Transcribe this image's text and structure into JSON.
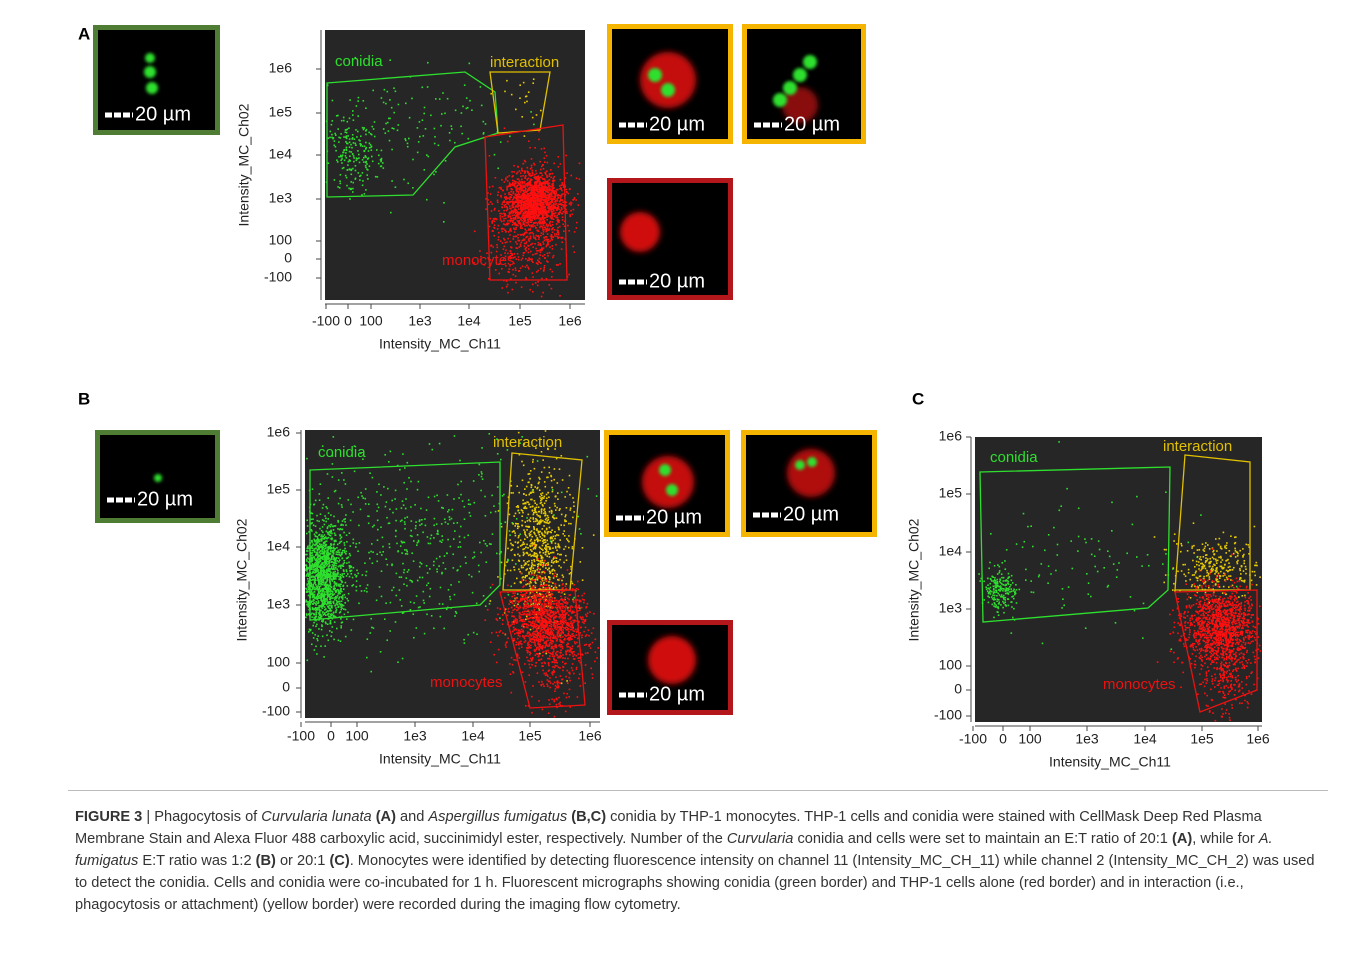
{
  "panels": [
    {
      "label": "A",
      "micrographs": [
        {
          "scale": "20 µm"
        },
        {
          "scale": "20 µm"
        },
        {
          "scale": "20 µm"
        },
        {
          "scale": "20 µm"
        }
      ],
      "plot": {
        "ylabel": "Intensity_MC_Ch02",
        "xlabel": "Intensity_MC_Ch11",
        "yticks": [
          "1e6",
          "1e5",
          "1e4",
          "1e3",
          "100",
          "0",
          "-100"
        ],
        "xticks": [
          "-100",
          "0",
          "100",
          "1e3",
          "1e4",
          "1e5",
          "1e6"
        ],
        "gates": [
          "conidia",
          "interaction",
          "monocytes"
        ]
      }
    },
    {
      "label": "B",
      "micrographs": [
        {
          "scale": "20 µm"
        },
        {
          "scale": "20 µm"
        },
        {
          "scale": "20 µm"
        },
        {
          "scale": "20 µm"
        }
      ],
      "plot": {
        "ylabel": "Intensity_MC_Ch02",
        "xlabel": "Intensity_MC_Ch11",
        "yticks": [
          "1e6",
          "1e5",
          "1e4",
          "1e3",
          "100",
          "0",
          "-100"
        ],
        "xticks": [
          "-100",
          "0",
          "100",
          "1e3",
          "1e4",
          "1e5",
          "1e6"
        ],
        "gates": [
          "conidia",
          "interaction",
          "monocytes"
        ]
      }
    },
    {
      "label": "C",
      "micrographs": [],
      "plot": {
        "ylabel": "Intensity_MC_Ch02",
        "xlabel": "Intensity_MC_Ch11",
        "yticks": [
          "1e6",
          "1e5",
          "1e4",
          "1e3",
          "100",
          "0",
          "-100"
        ],
        "xticks": [
          "-100",
          "0",
          "100",
          "1e3",
          "1e4",
          "1e5",
          "1e6"
        ],
        "gates": [
          "conidia",
          "interaction",
          "monocytes"
        ]
      }
    }
  ],
  "caption": [
    {
      "text": "FIGURE 3",
      "style": "b"
    },
    {
      "text": " | Phagocytosis of "
    },
    {
      "text": "Curvularia lunata",
      "style": "i"
    },
    {
      "text": " "
    },
    {
      "text": "(A)",
      "style": "b"
    },
    {
      "text": " and "
    },
    {
      "text": "Aspergillus fumigatus",
      "style": "i"
    },
    {
      "text": " "
    },
    {
      "text": "(B,C)",
      "style": "b"
    },
    {
      "text": " conidia by THP-1 monocytes. THP-1 cells and conidia were stained with CellMask Deep Red Plasma Membrane Stain and Alexa Fluor 488 carboxylic acid, succinimidyl ester, respectively. Number of the "
    },
    {
      "text": "Curvularia",
      "style": "i"
    },
    {
      "text": " conidia and cells were set to maintain an E:T ratio of 20:1 "
    },
    {
      "text": "(A)",
      "style": "b"
    },
    {
      "text": ", while for "
    },
    {
      "text": "A. fumigatus",
      "style": "i"
    },
    {
      "text": " E:T ratio was 1:2 "
    },
    {
      "text": "(B)",
      "style": "b"
    },
    {
      "text": " or 20:1 "
    },
    {
      "text": "(C)",
      "style": "b"
    },
    {
      "text": ". Monocytes were identified by detecting fluorescence intensity on channel 11 (Intensity_MC_CH_11) while channel 2 (Intensity_MC_CH_2) was used to detect the conidia. Cells and conidia were co-incubated for 1 h. Fluorescent micrographs showing conidia (green border) and THP-1 cells alone (red border) and in interaction (i.e., phagocytosis or attachment) (yellow border) were recorded during the imaging flow cytometry."
    }
  ]
}
